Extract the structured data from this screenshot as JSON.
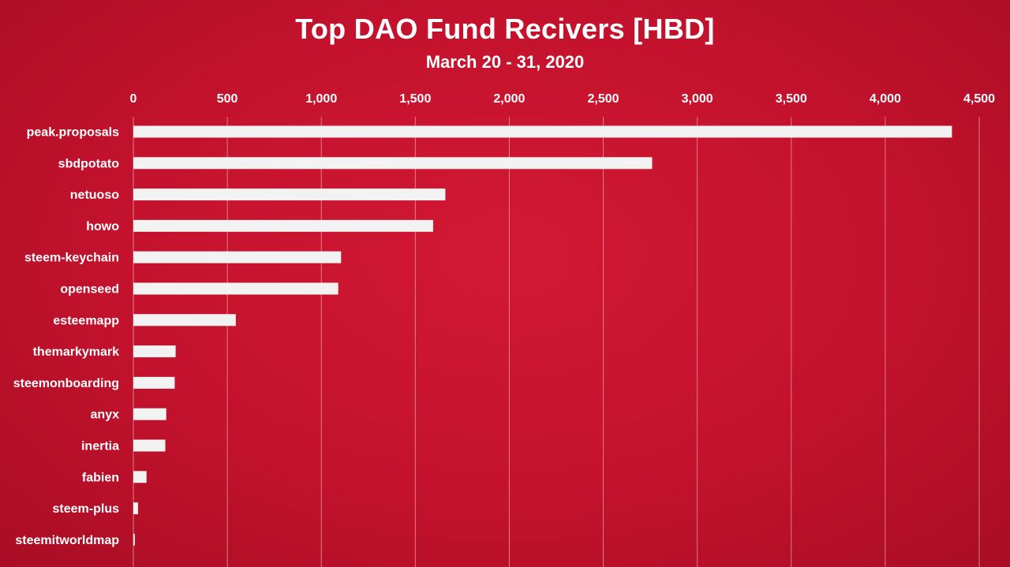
{
  "chart_data": {
    "type": "bar",
    "orientation": "horizontal",
    "title": "Top DAO Fund Recivers [HBD]",
    "subtitle": "March 20 - 31, 2020",
    "xlabel": "",
    "ylabel": "",
    "xlim": [
      0,
      4500
    ],
    "x_ticks": [
      0,
      500,
      1000,
      1500,
      2000,
      2500,
      3000,
      3500,
      4000,
      4500
    ],
    "x_tick_labels": [
      "0",
      "500",
      "1,000",
      "1,500",
      "2,000",
      "2,500",
      "3,000",
      "3,500",
      "4,000",
      "4,500"
    ],
    "x_axis_position": "top",
    "grid": true,
    "categories": [
      "peak.proposals",
      "sbdpotato",
      "netuoso",
      "howo",
      "steem-keychain",
      "openseed",
      "esteemapp",
      "themarkymark",
      "steemonboarding",
      "anyx",
      "inertia",
      "fabien",
      "steem-plus",
      "steemitworldmap"
    ],
    "values": [
      4355,
      2760,
      1660,
      1595,
      1105,
      1090,
      545,
      225,
      220,
      175,
      170,
      70,
      25,
      8
    ],
    "colors": {
      "background": "#c8102e",
      "bar": "#f2f2f2",
      "grid": "#e8a0aa",
      "text": "#ffffff"
    }
  }
}
